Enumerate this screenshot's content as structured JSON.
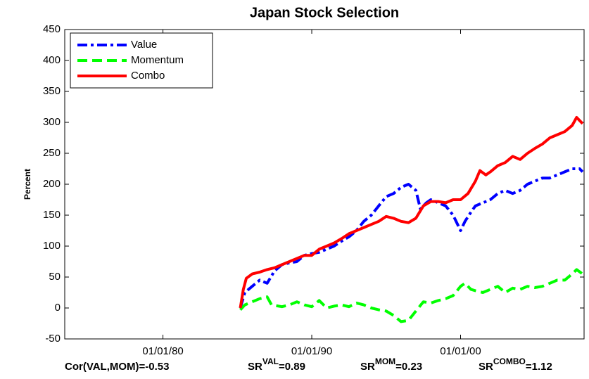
{
  "chart_data": {
    "type": "line",
    "title": "Japan Stock Selection",
    "y_label": "Percent",
    "xlim": [
      1973.4,
      2008.3
    ],
    "xticks": [
      {
        "value": 1980,
        "label": "01/01/80"
      },
      {
        "value": 1990,
        "label": "01/01/90"
      },
      {
        "value": 2000,
        "label": "01/01/00"
      }
    ],
    "ylim": [
      -50,
      450
    ],
    "yticks": [
      -50,
      0,
      50,
      100,
      150,
      200,
      250,
      300,
      350,
      400,
      450
    ],
    "legend": "upper-left",
    "series": [
      {
        "name": "Value",
        "color": "#0000ff",
        "style": "dashdot",
        "x": [
          1985.2,
          1985.5,
          1986,
          1986.5,
          1987,
          1987.5,
          1988,
          1988.5,
          1989,
          1989.5,
          1990,
          1990.5,
          1991,
          1991.5,
          1992,
          1992.5,
          1993,
          1993.5,
          1994,
          1994.5,
          1995,
          1995.5,
          1996,
          1996.5,
          1997,
          1997.3,
          1997.7,
          1998,
          1998.5,
          1999,
          1999.5,
          2000,
          2000.3,
          2000.7,
          2001,
          2001.5,
          2002,
          2002.5,
          2003,
          2003.5,
          2004,
          2004.5,
          2005,
          2005.5,
          2006,
          2006.5,
          2007,
          2007.5,
          2008,
          2008.2
        ],
        "values": [
          0,
          25,
          35,
          45,
          40,
          60,
          70,
          73,
          75,
          85,
          88,
          90,
          95,
          100,
          108,
          115,
          125,
          140,
          150,
          165,
          180,
          185,
          195,
          200,
          190,
          160,
          170,
          175,
          170,
          165,
          150,
          125,
          140,
          155,
          165,
          170,
          175,
          185,
          190,
          185,
          190,
          200,
          205,
          210,
          210,
          215,
          220,
          225,
          225,
          220
        ]
      },
      {
        "name": "Momentum",
        "color": "#00ff00",
        "style": "dashed",
        "x": [
          1985.2,
          1985.5,
          1986,
          1986.5,
          1987,
          1987.3,
          1988,
          1988.5,
          1989,
          1989.5,
          1990,
          1990.5,
          1991,
          1991.5,
          1992,
          1992.5,
          1993,
          1993.5,
          1994,
          1994.5,
          1995,
          1995.5,
          1996,
          1996.5,
          1997,
          1997.5,
          1998,
          1998.5,
          1999,
          1999.5,
          2000,
          2000.3,
          2000.7,
          2001,
          2001.5,
          2002,
          2002.5,
          2003,
          2003.5,
          2004,
          2004.5,
          2005,
          2005.5,
          2006,
          2006.5,
          2007,
          2007.5,
          2007.8,
          2008.2
        ],
        "values": [
          -3,
          5,
          10,
          15,
          18,
          5,
          2,
          5,
          10,
          5,
          2,
          12,
          0,
          3,
          5,
          2,
          8,
          5,
          0,
          -3,
          -5,
          -12,
          -22,
          -20,
          -5,
          10,
          8,
          12,
          15,
          20,
          35,
          40,
          30,
          28,
          25,
          30,
          35,
          25,
          32,
          30,
          35,
          33,
          35,
          40,
          45,
          45,
          55,
          62,
          55
        ]
      },
      {
        "name": "Combo",
        "color": "#ff0000",
        "style": "solid",
        "x": [
          1985.2,
          1985.4,
          1985.6,
          1986,
          1986.5,
          1987,
          1987.5,
          1988,
          1988.5,
          1989,
          1989.5,
          1990,
          1990.5,
          1991,
          1991.5,
          1992,
          1992.5,
          1993,
          1993.5,
          1994,
          1994.5,
          1995,
          1995.5,
          1996,
          1996.5,
          1997,
          1997.5,
          1998,
          1998.5,
          1999,
          1999.5,
          2000,
          2000.5,
          2001,
          2001.3,
          2001.7,
          2002,
          2002.5,
          2003,
          2003.5,
          2004,
          2004.5,
          2005,
          2005.5,
          2006,
          2006.5,
          2007,
          2007.5,
          2007.8,
          2008.2
        ],
        "values": [
          0,
          30,
          48,
          55,
          58,
          62,
          65,
          70,
          75,
          80,
          85,
          85,
          95,
          100,
          105,
          112,
          120,
          125,
          130,
          135,
          140,
          148,
          145,
          140,
          138,
          145,
          165,
          172,
          172,
          170,
          175,
          175,
          185,
          205,
          222,
          215,
          220,
          230,
          235,
          245,
          240,
          250,
          258,
          265,
          275,
          280,
          285,
          295,
          308,
          298
        ]
      }
    ],
    "annotations": [
      {
        "base": "Cor(VAL,MOM)=-0.53"
      },
      {
        "base": "SR",
        "sup": "VAL",
        "rest": "=0.89"
      },
      {
        "base": "SR",
        "sup": "MOM",
        "rest": "=0.23"
      },
      {
        "base": "SR",
        "sup": "COMBO",
        "rest": "=1.12"
      }
    ]
  }
}
